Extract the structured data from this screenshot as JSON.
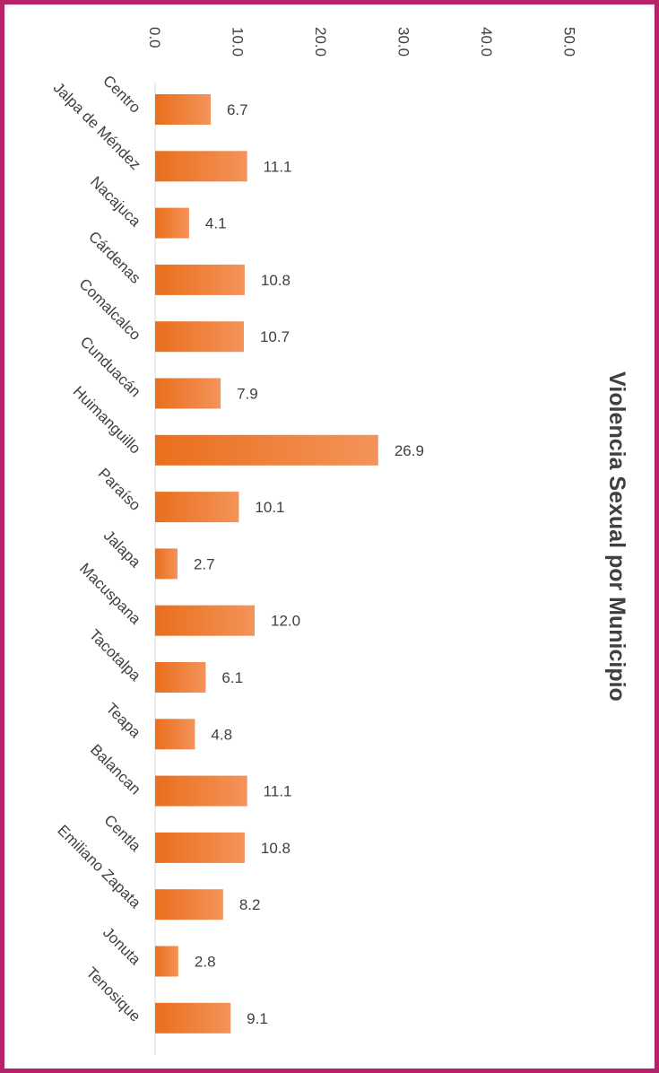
{
  "chart_data": {
    "type": "bar",
    "orientation": "horizontal",
    "title": "Violencia Sexual por Municipio",
    "categories": [
      "Centro",
      "Jalpa de Méndez",
      "Nacajuca",
      "Cárdenas",
      "Comalcalco",
      "Cunduacán",
      "Huimanguillo",
      "Paraíso",
      "Jalapa",
      "Macuspana",
      "Tacotalpa",
      "Teapa",
      "Balancan",
      "Centla",
      "Emiliano Zapata",
      "Jonuta",
      "Tenosique"
    ],
    "values": [
      6.7,
      11.1,
      4.1,
      10.8,
      10.7,
      7.9,
      26.9,
      10.1,
      2.7,
      12.0,
      6.1,
      4.8,
      11.1,
      10.8,
      8.2,
      2.8,
      9.1
    ],
    "value_labels": [
      "6.7",
      "11.1",
      "4.1",
      "10.8",
      "10.7",
      "7.9",
      "26.9",
      "10.1",
      "2.7",
      "12.0",
      "6.1",
      "4.8",
      "11.1",
      "10.8",
      "8.2",
      "2.8",
      "9.1"
    ],
    "ticks": [
      0,
      10,
      20,
      30,
      40,
      50
    ],
    "tick_labels": [
      "0.0",
      "10.0",
      "20.0",
      "30.0",
      "40.0",
      "50.0"
    ],
    "xlim": [
      0,
      50
    ],
    "grid": false,
    "legend": "none",
    "bar_color_dark": "#e96f1c",
    "bar_color_light": "#f4935a",
    "frame_color": "#b5226b",
    "text_color": "#404040"
  }
}
